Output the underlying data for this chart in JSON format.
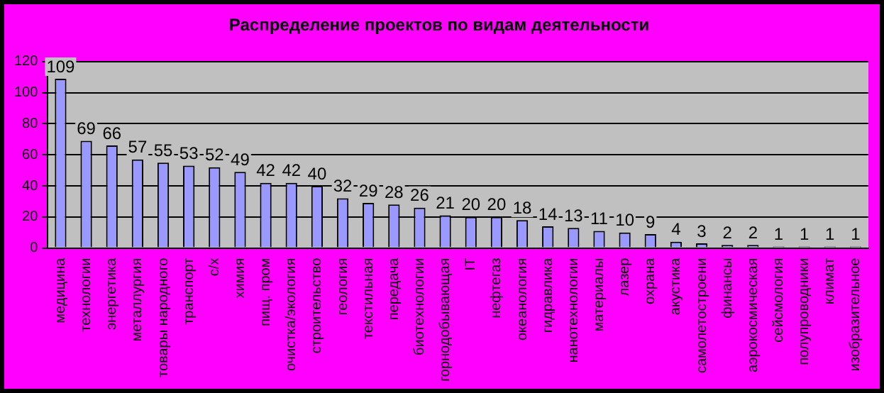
{
  "chart_data": {
    "type": "bar",
    "title": "Распределение проектов по видам деятельности",
    "categories": [
      "медицина",
      "технологии",
      "энергетика",
      "металлургия",
      "товары народного",
      "транспорт",
      "с/х",
      "химия",
      "пищ. пром",
      "очистка/экология",
      "строительство",
      "геология",
      "текстильная",
      "передача",
      "биотехнологии",
      "горнодобывающая",
      "IT",
      "нефтегаз",
      "океанология",
      "гидравлика",
      "нанотехнологии",
      "материалы",
      "лазер",
      "охрана",
      "акустика",
      "самолетостроени",
      "финансы",
      "аэрокосмическая",
      "сейсмология",
      "полупроводники",
      "климат",
      "изобразительное"
    ],
    "values": [
      109,
      69,
      66,
      57,
      55,
      53,
      52,
      49,
      42,
      42,
      40,
      32,
      29,
      28,
      26,
      21,
      20,
      20,
      18,
      14,
      13,
      11,
      10,
      9,
      4,
      3,
      2,
      2,
      1,
      1,
      1,
      1
    ],
    "color": "#9999ff",
    "ylim": [
      0,
      120
    ],
    "yticks": [
      0,
      20,
      40,
      60,
      80,
      100,
      120
    ],
    "grid": "y",
    "data_labels": true,
    "legend": false
  }
}
